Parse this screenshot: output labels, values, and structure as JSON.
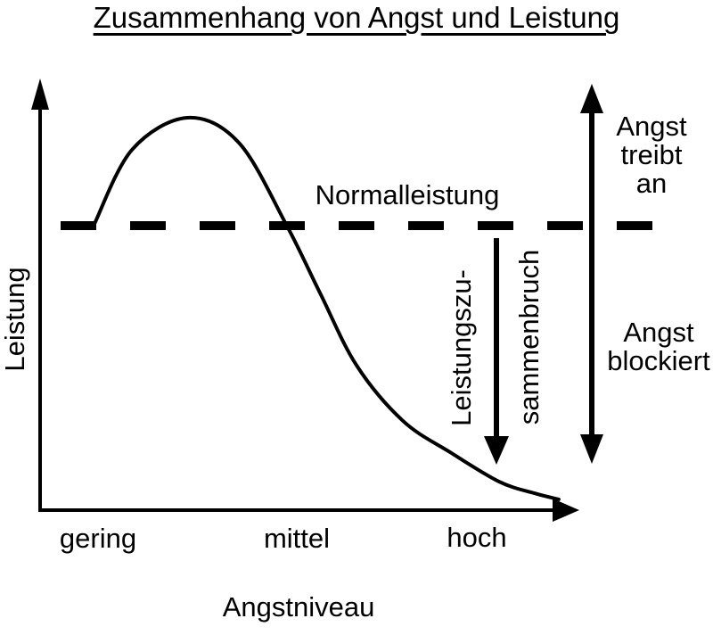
{
  "title": "Zusammenhang von Angst und Leistung",
  "chart_data": {
    "type": "line",
    "title": "Zusammenhang von Angst und Leistung",
    "xlabel": "Angstniveau",
    "ylabel": "Leistung",
    "x_tick_labels": [
      "gering",
      "mittel",
      "hoch"
    ],
    "axis_style": "qualitative arrow axes, no numeric ticks, black on white",
    "reference_line": {
      "label": "Normalleistung",
      "style": "dashed",
      "y_rel": 0.659
    },
    "series": [
      {
        "name": "Leistung",
        "points_rel": [
          [
            0.101,
            0.663
          ],
          [
            0.171,
            0.835
          ],
          [
            0.274,
            0.909
          ],
          [
            0.37,
            0.851
          ],
          [
            0.459,
            0.659
          ],
          [
            0.522,
            0.5
          ],
          [
            0.589,
            0.335
          ],
          [
            0.675,
            0.207
          ],
          [
            0.763,
            0.134
          ],
          [
            0.854,
            0.066
          ],
          [
            0.92,
            0.039
          ],
          [
            0.965,
            0.025
          ]
        ],
        "description": "Performance starts at Normalleistung for low anxiety, rises to a peak at low-to-medium anxiety, then collapses toward zero at high anxiety"
      }
    ],
    "annotations": [
      {
        "text": "Leistungszu-sammenbruch",
        "type": "down-arrow",
        "x_rel": 0.85,
        "from": "Normalleistung line",
        "to": "low performance"
      },
      {
        "text": "Angst treibt an",
        "type": "double-arrow-upper-region",
        "position": "right side, above dashed line"
      },
      {
        "text": "Angst blockiert",
        "type": "double-arrow-lower-region",
        "position": "right side, below dashed line"
      }
    ]
  },
  "annotation_labels": {
    "breakdown_line1": "Leistungszu-",
    "breakdown_line2": "sammenbruch",
    "drive_line1": "Angst",
    "drive_line2": "treibt",
    "drive_line3": "an",
    "block_line1": "Angst",
    "block_line2": "blockiert"
  },
  "colors": {
    "ink": "#000000",
    "background": "#ffffff"
  }
}
